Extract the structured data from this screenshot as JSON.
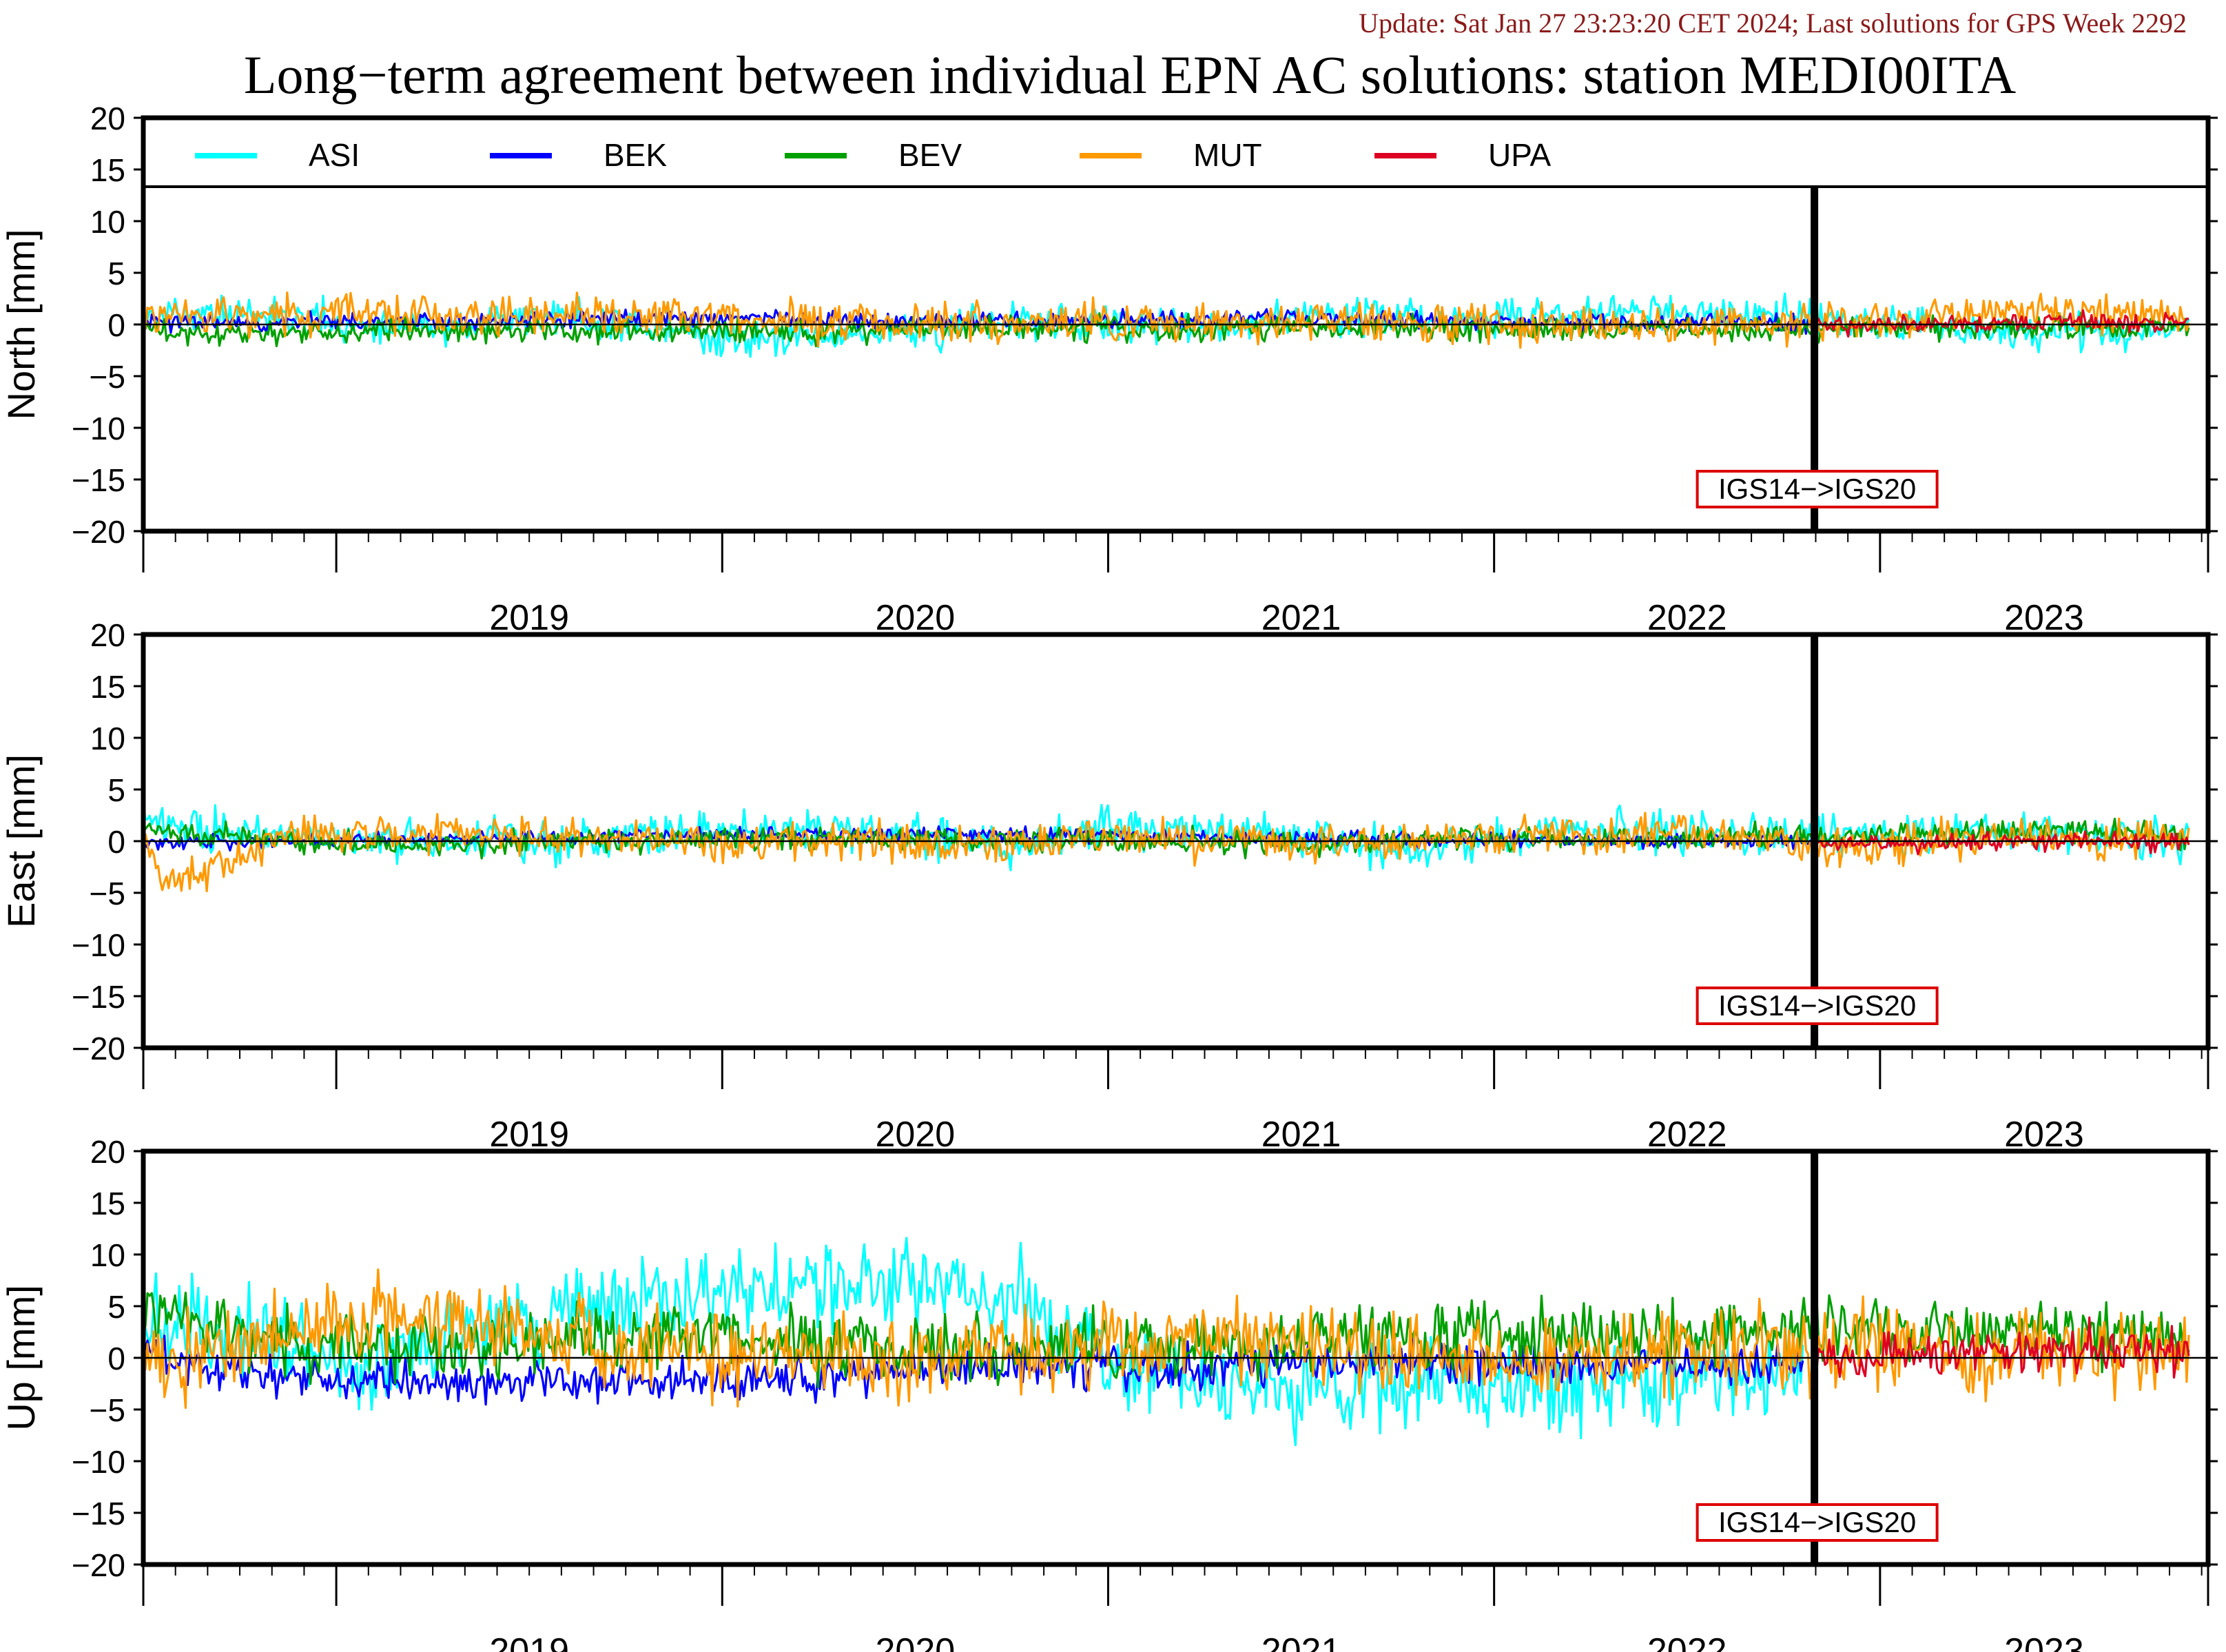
{
  "header": {
    "update_text": "Update: Sat Jan 27 23:23:20 CET 2024; Last solutions for GPS Week 2292",
    "title": "Long−term agreement between individual EPN AC solutions: station MEDI00ITA"
  },
  "colors": {
    "update_text": "#8b1a1a",
    "ASI": "#00ffff",
    "BEK": "#0000ff",
    "BEV": "#00a000",
    "MUT": "#ff9900",
    "UPA": "#dd0022",
    "box": "#dd0000"
  },
  "chart_data": [
    {
      "type": "line",
      "ylabel": "North [mm]",
      "ylim": [
        -20,
        20
      ],
      "yticks": [
        20,
        15,
        10,
        5,
        0,
        -5,
        -10,
        -15,
        -20
      ],
      "xlim": [
        2018.5,
        2023.85
      ],
      "x_tick_labels": [
        "2019",
        "2020",
        "2021",
        "2022",
        "2023"
      ],
      "legend": [
        "ASI",
        "BEK",
        "BEV",
        "MUT",
        "UPA"
      ],
      "legend_position": "top",
      "frame_change": {
        "x": 2022.83,
        "label": "IGS14−>IGS20"
      },
      "series": [
        {
          "name": "ASI",
          "x": [
            2018.5,
            2018.8,
            2019.2,
            2019.6,
            2020.0,
            2020.4,
            2020.8,
            2021.2,
            2021.6,
            2022.0,
            2022.4,
            2022.8,
            2023.2,
            2023.6,
            2023.8
          ],
          "values": [
            0.8,
            1.0,
            -0.6,
            0.9,
            -1.4,
            -1.0,
            0.6,
            -0.4,
            0.9,
            0.7,
            1.1,
            0.8,
            -0.6,
            -0.8,
            -0.4
          ],
          "noise": 1.2
        },
        {
          "name": "BEK",
          "x": [
            2018.5,
            2019.0,
            2019.5,
            2020.0,
            2020.5,
            2021.0,
            2021.5,
            2022.0,
            2022.5,
            2022.83
          ],
          "values": [
            0.2,
            0.3,
            0.5,
            0.6,
            0.4,
            0.4,
            0.6,
            0.2,
            0.1,
            0.2
          ],
          "noise": 0.6
        },
        {
          "name": "BEV",
          "x": [
            2018.5,
            2019.0,
            2019.5,
            2020.0,
            2020.5,
            2021.0,
            2021.5,
            2022.0,
            2022.5,
            2023.0,
            2023.5,
            2023.8
          ],
          "values": [
            -0.9,
            -0.7,
            -0.5,
            -0.8,
            -0.6,
            -0.5,
            -0.4,
            -0.5,
            -0.6,
            -0.4,
            -0.3,
            -0.4
          ],
          "noise": 0.8
        },
        {
          "name": "MUT",
          "x": [
            2018.5,
            2019.0,
            2019.5,
            2020.0,
            2020.5,
            2021.0,
            2021.5,
            2022.0,
            2022.5,
            2023.0,
            2023.3,
            2023.8
          ],
          "values": [
            0.5,
            1.1,
            0.9,
            0.6,
            0.3,
            0.2,
            0.2,
            0.1,
            0.0,
            0.4,
            1.4,
            0.6
          ],
          "noise": 1.3
        },
        {
          "name": "UPA",
          "x": [
            2022.83,
            2023.2,
            2023.6,
            2023.8
          ],
          "values": [
            -0.2,
            0.0,
            0.3,
            0.1
          ],
          "noise": 0.6
        }
      ]
    },
    {
      "type": "line",
      "ylabel": "East [mm]",
      "ylim": [
        -20,
        20
      ],
      "yticks": [
        20,
        15,
        10,
        5,
        0,
        -5,
        -10,
        -15,
        -20
      ],
      "xlim": [
        2018.5,
        2023.85
      ],
      "x_tick_labels": [
        "2019",
        "2020",
        "2021",
        "2022",
        "2023"
      ],
      "frame_change": {
        "x": 2022.83,
        "label": "IGS14−>IGS20"
      },
      "series": [
        {
          "name": "ASI",
          "x": [
            2018.5,
            2018.9,
            2019.3,
            2019.7,
            2020.0,
            2020.4,
            2020.8,
            2021.0,
            2021.4,
            2021.8,
            2022.2,
            2022.6,
            2023.0,
            2023.4,
            2023.8
          ],
          "values": [
            1.8,
            0.2,
            -0.4,
            0.4,
            0.9,
            1.0,
            -0.8,
            1.6,
            0.7,
            -0.9,
            1.2,
            0.4,
            0.6,
            0.8,
            0.2
          ],
          "noise": 1.4
        },
        {
          "name": "BEK",
          "x": [
            2018.5,
            2019.0,
            2019.5,
            2020.0,
            2020.5,
            2021.0,
            2021.5,
            2022.0,
            2022.5,
            2022.83
          ],
          "values": [
            -0.3,
            0.1,
            0.3,
            0.6,
            0.7,
            0.6,
            0.3,
            0.1,
            0.0,
            0.0
          ],
          "noise": 0.5
        },
        {
          "name": "BEV",
          "x": [
            2018.5,
            2019.0,
            2019.5,
            2020.0,
            2020.5,
            2021.0,
            2021.5,
            2022.0,
            2022.5,
            2023.0,
            2023.5,
            2023.8
          ],
          "values": [
            1.2,
            -0.4,
            -0.1,
            0.1,
            0.2,
            0.0,
            -0.2,
            0.2,
            0.3,
            0.6,
            1.0,
            0.5
          ],
          "noise": 0.8
        },
        {
          "name": "MUT",
          "x": [
            2018.5,
            2018.55,
            2018.9,
            2019.3,
            2019.7,
            2020.0,
            2020.5,
            2021.0,
            2021.5,
            2022.0,
            2022.5,
            2022.8,
            2023.3,
            2023.8
          ],
          "values": [
            1.0,
            -4.5,
            0.6,
            0.9,
            0.3,
            0.1,
            -0.4,
            0.3,
            -0.2,
            0.6,
            0.9,
            -0.5,
            0.3,
            0.2
          ],
          "noise": 1.3
        },
        {
          "name": "UPA",
          "x": [
            2022.83,
            2023.2,
            2023.6,
            2023.8
          ],
          "values": [
            -0.3,
            -0.2,
            0.0,
            -0.1
          ],
          "noise": 0.6
        }
      ]
    },
    {
      "type": "line",
      "ylabel": "Up [mm]",
      "ylim": [
        -20,
        20
      ],
      "yticks": [
        20,
        15,
        10,
        5,
        0,
        -5,
        -10,
        -15,
        -20
      ],
      "xlim": [
        2018.5,
        2023.85
      ],
      "x_tick_labels": [
        "2019",
        "2020",
        "2021",
        "2022",
        "2023"
      ],
      "frame_change": {
        "x": 2022.83,
        "label": "IGS14−>IGS20"
      },
      "series": [
        {
          "name": "ASI",
          "x": [
            2018.5,
            2018.8,
            2019.1,
            2019.4,
            2019.7,
            2020.0,
            2020.3,
            2020.6,
            2020.8,
            2021.0,
            2021.4,
            2021.8,
            2022.2,
            2022.6,
            2022.8
          ],
          "values": [
            4.0,
            1.5,
            -1.0,
            2.5,
            5.0,
            6.5,
            7.0,
            6.5,
            5.5,
            -0.5,
            -2.5,
            -2.5,
            -3.0,
            -1.5,
            -1.0
          ],
          "noise": 3.0
        },
        {
          "name": "BEK",
          "x": [
            2018.5,
            2018.8,
            2019.2,
            2019.6,
            2020.0,
            2020.4,
            2020.8,
            2021.2,
            2021.6,
            2022.0,
            2022.4,
            2022.8
          ],
          "values": [
            0.0,
            -1.5,
            -2.5,
            -2.0,
            -2.5,
            -1.5,
            -1.0,
            -1.0,
            -0.5,
            -0.5,
            -1.0,
            -0.5
          ],
          "noise": 1.4
        },
        {
          "name": "BEV",
          "x": [
            2018.5,
            2018.7,
            2019.0,
            2019.5,
            2020.0,
            2020.5,
            2021.0,
            2021.5,
            2022.0,
            2022.5,
            2023.0,
            2023.4,
            2023.8
          ],
          "values": [
            4.5,
            2.5,
            1.0,
            1.5,
            2.0,
            1.0,
            1.0,
            1.5,
            2.5,
            2.5,
            3.0,
            2.5,
            1.5
          ],
          "noise": 2.2
        },
        {
          "name": "MUT",
          "x": [
            2018.5,
            2018.8,
            2019.0,
            2019.3,
            2019.7,
            2020.0,
            2020.5,
            2021.0,
            2021.5,
            2022.0,
            2022.5,
            2023.0,
            2023.5,
            2023.8
          ],
          "values": [
            0.0,
            2.0,
            4.0,
            3.5,
            1.5,
            0.5,
            0.0,
            1.0,
            1.5,
            -0.5,
            0.5,
            1.0,
            0.5,
            0.5
          ],
          "noise": 2.8
        },
        {
          "name": "UPA",
          "x": [
            2022.83,
            2023.1,
            2023.3,
            2023.5,
            2023.7,
            2023.8
          ],
          "values": [
            -0.5,
            0.0,
            0.5,
            1.0,
            0.5,
            0.5
          ],
          "noise": 1.6
        }
      ]
    }
  ]
}
